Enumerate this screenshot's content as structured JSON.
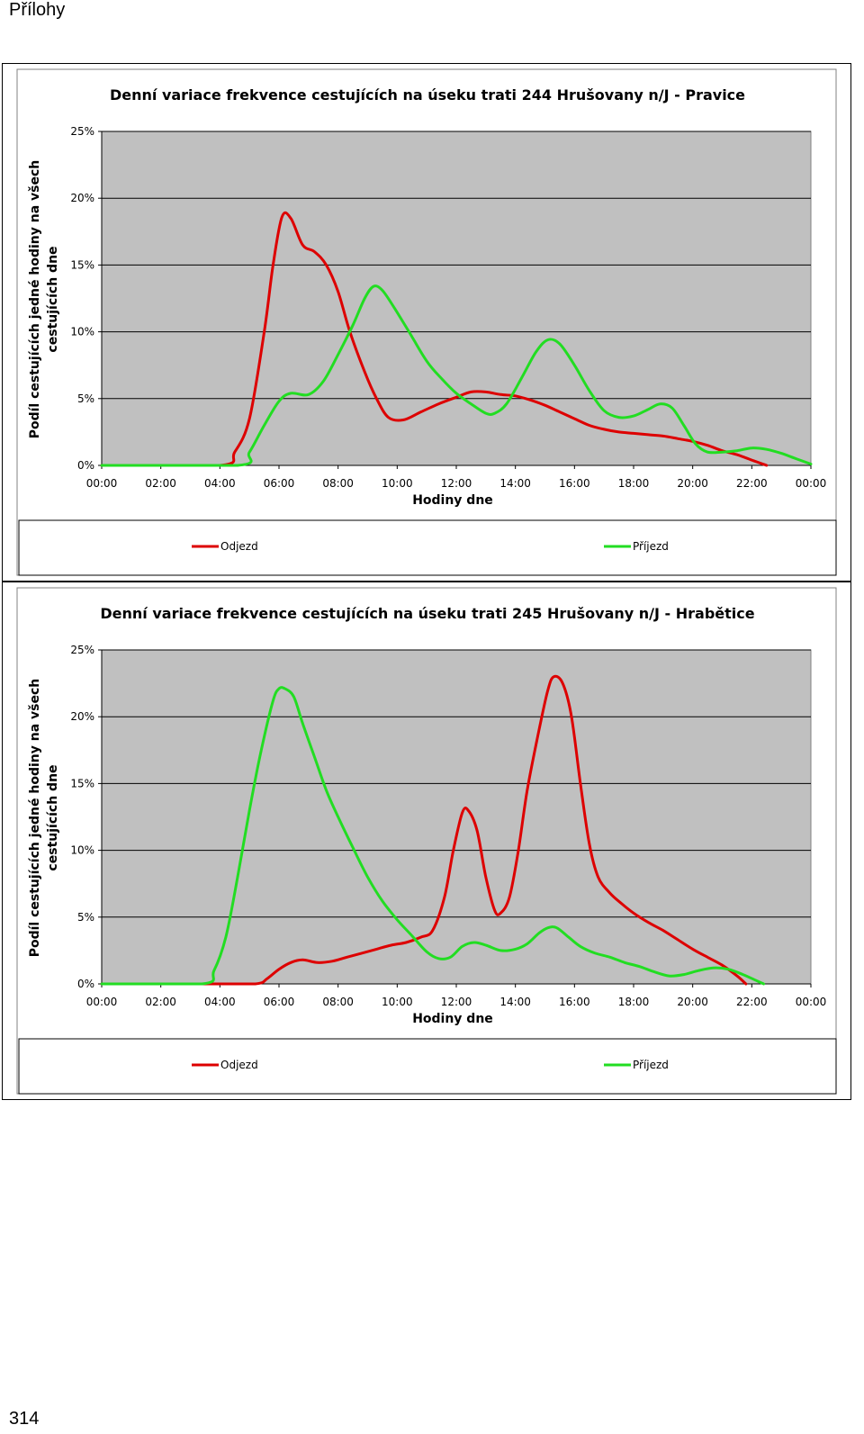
{
  "page": {
    "header": "Přílohy",
    "footer": "314"
  },
  "colors": {
    "odjezd": "#dd0000",
    "prijezd": "#22dd22",
    "plot_bg": "#c0c0c0"
  },
  "chart_data": [
    {
      "type": "line",
      "title": "Denní variace frekvence cestujících na úseku trati 244 Hrušovany n/J - Pravice",
      "xlabel": "Hodiny dne",
      "ylabel": [
        "Podíl cestujících jedné hodiny na všech",
        "cestujících dne"
      ],
      "x_ticks": [
        "00:00",
        "02:00",
        "04:00",
        "06:00",
        "08:00",
        "10:00",
        "12:00",
        "14:00",
        "16:00",
        "18:00",
        "20:00",
        "22:00",
        "00:00"
      ],
      "y_ticks": [
        "0%",
        "5%",
        "10%",
        "15%",
        "20%",
        "25%"
      ],
      "xlim": [
        0,
        24
      ],
      "ylim": [
        0,
        25
      ],
      "grid": true,
      "legend_position": "bottom",
      "series": [
        {
          "name": "Odjezd",
          "color": "#dd0000",
          "points": [
            [
              0,
              0
            ],
            [
              4,
              0
            ],
            [
              4.5,
              1
            ],
            [
              5,
              3.5
            ],
            [
              5.5,
              10
            ],
            [
              5.8,
              15
            ],
            [
              6.1,
              18.6
            ],
            [
              6.4,
              18.5
            ],
            [
              6.8,
              16.5
            ],
            [
              7.2,
              16
            ],
            [
              7.6,
              15
            ],
            [
              8,
              13
            ],
            [
              8.4,
              10
            ],
            [
              8.9,
              7
            ],
            [
              9.3,
              5
            ],
            [
              9.7,
              3.6
            ],
            [
              10.2,
              3.4
            ],
            [
              10.8,
              4
            ],
            [
              11.4,
              4.6
            ],
            [
              12,
              5.1
            ],
            [
              12.5,
              5.5
            ],
            [
              13,
              5.5
            ],
            [
              13.5,
              5.3
            ],
            [
              14,
              5.2
            ],
            [
              14.5,
              4.9
            ],
            [
              15,
              4.5
            ],
            [
              15.5,
              4
            ],
            [
              16,
              3.5
            ],
            [
              16.5,
              3
            ],
            [
              17,
              2.7
            ],
            [
              17.5,
              2.5
            ],
            [
              18,
              2.4
            ],
            [
              18.5,
              2.3
            ],
            [
              19,
              2.2
            ],
            [
              19.5,
              2
            ],
            [
              20,
              1.8
            ],
            [
              20.5,
              1.5
            ],
            [
              21,
              1.1
            ],
            [
              21.5,
              0.8
            ],
            [
              22,
              0.4
            ],
            [
              22.5,
              0
            ]
          ]
        },
        {
          "name": "Příjezd",
          "color": "#22dd22",
          "points": [
            [
              0,
              0
            ],
            [
              4.6,
              0
            ],
            [
              5,
              1
            ],
            [
              5.5,
              3
            ],
            [
              6,
              4.8
            ],
            [
              6.4,
              5.4
            ],
            [
              7,
              5.3
            ],
            [
              7.5,
              6.3
            ],
            [
              8,
              8.3
            ],
            [
              8.5,
              10.5
            ],
            [
              8.9,
              12.5
            ],
            [
              9.2,
              13.4
            ],
            [
              9.5,
              13.1
            ],
            [
              9.9,
              11.8
            ],
            [
              10.4,
              10
            ],
            [
              11,
              7.8
            ],
            [
              11.5,
              6.5
            ],
            [
              12,
              5.4
            ],
            [
              12.5,
              4.6
            ],
            [
              13,
              3.9
            ],
            [
              13.3,
              3.9
            ],
            [
              13.7,
              4.6
            ],
            [
              14.2,
              6.5
            ],
            [
              14.7,
              8.5
            ],
            [
              15.1,
              9.4
            ],
            [
              15.5,
              9.1
            ],
            [
              16,
              7.5
            ],
            [
              16.5,
              5.6
            ],
            [
              17,
              4.1
            ],
            [
              17.5,
              3.6
            ],
            [
              18,
              3.7
            ],
            [
              18.5,
              4.2
            ],
            [
              18.9,
              4.6
            ],
            [
              19.3,
              4.3
            ],
            [
              19.7,
              3
            ],
            [
              20.1,
              1.6
            ],
            [
              20.5,
              1
            ],
            [
              21,
              1
            ],
            [
              21.5,
              1.1
            ],
            [
              22,
              1.3
            ],
            [
              22.5,
              1.2
            ],
            [
              23,
              0.9
            ],
            [
              23.5,
              0.5
            ],
            [
              24,
              0.1
            ]
          ]
        }
      ]
    },
    {
      "type": "line",
      "title": "Denní variace frekvence cestujících na úseku trati 245 Hrušovany n/J - Hrabětice",
      "xlabel": "Hodiny dne",
      "ylabel": [
        "Podíl cestujících jedné hodiny na všech",
        "cestujících dne"
      ],
      "x_ticks": [
        "00:00",
        "02:00",
        "04:00",
        "06:00",
        "08:00",
        "10:00",
        "12:00",
        "14:00",
        "16:00",
        "18:00",
        "20:00",
        "22:00",
        "00:00"
      ],
      "y_ticks": [
        "0%",
        "5%",
        "10%",
        "15%",
        "20%",
        "25%"
      ],
      "xlim": [
        0,
        24
      ],
      "ylim": [
        0,
        25
      ],
      "grid": true,
      "legend_position": "bottom",
      "series": [
        {
          "name": "Odjezd",
          "color": "#dd0000",
          "points": [
            [
              0,
              0
            ],
            [
              3.5,
              0
            ],
            [
              5.2,
              0
            ],
            [
              5.6,
              0.4
            ],
            [
              6,
              1.1
            ],
            [
              6.4,
              1.6
            ],
            [
              6.8,
              1.8
            ],
            [
              7.3,
              1.6
            ],
            [
              7.8,
              1.7
            ],
            [
              8.3,
              2
            ],
            [
              8.8,
              2.3
            ],
            [
              9.3,
              2.6
            ],
            [
              9.8,
              2.9
            ],
            [
              10.3,
              3.1
            ],
            [
              10.8,
              3.5
            ],
            [
              11.2,
              4
            ],
            [
              11.6,
              6.5
            ],
            [
              11.9,
              10
            ],
            [
              12.2,
              12.8
            ],
            [
              12.4,
              13
            ],
            [
              12.7,
              11.5
            ],
            [
              13,
              8
            ],
            [
              13.3,
              5.5
            ],
            [
              13.5,
              5.3
            ],
            [
              13.8,
              6.5
            ],
            [
              14.1,
              10
            ],
            [
              14.4,
              14.5
            ],
            [
              14.8,
              19
            ],
            [
              15.1,
              22
            ],
            [
              15.3,
              23
            ],
            [
              15.6,
              22.5
            ],
            [
              15.9,
              20
            ],
            [
              16.2,
              15
            ],
            [
              16.5,
              10.5
            ],
            [
              16.8,
              8
            ],
            [
              17.2,
              6.8
            ],
            [
              17.6,
              6
            ],
            [
              18,
              5.3
            ],
            [
              18.5,
              4.6
            ],
            [
              19,
              4
            ],
            [
              19.5,
              3.3
            ],
            [
              20,
              2.6
            ],
            [
              20.5,
              2
            ],
            [
              21,
              1.4
            ],
            [
              21.5,
              0.6
            ],
            [
              21.8,
              0
            ]
          ]
        },
        {
          "name": "Příjezd",
          "color": "#22dd22",
          "points": [
            [
              0,
              0
            ],
            [
              3.4,
              0
            ],
            [
              3.8,
              1
            ],
            [
              4.2,
              3.5
            ],
            [
              4.6,
              8
            ],
            [
              5,
              13
            ],
            [
              5.4,
              17.5
            ],
            [
              5.8,
              21.2
            ],
            [
              6,
              22.1
            ],
            [
              6.2,
              22.1
            ],
            [
              6.5,
              21.5
            ],
            [
              6.8,
              19.5
            ],
            [
              7.2,
              17
            ],
            [
              7.6,
              14.5
            ],
            [
              8,
              12.5
            ],
            [
              8.5,
              10.2
            ],
            [
              9,
              8
            ],
            [
              9.5,
              6.2
            ],
            [
              10,
              4.8
            ],
            [
              10.5,
              3.6
            ],
            [
              11,
              2.4
            ],
            [
              11.4,
              1.9
            ],
            [
              11.8,
              2
            ],
            [
              12.2,
              2.8
            ],
            [
              12.6,
              3.1
            ],
            [
              13,
              2.9
            ],
            [
              13.5,
              2.5
            ],
            [
              14,
              2.6
            ],
            [
              14.4,
              3
            ],
            [
              14.8,
              3.8
            ],
            [
              15.1,
              4.2
            ],
            [
              15.4,
              4.2
            ],
            [
              15.8,
              3.5
            ],
            [
              16.2,
              2.8
            ],
            [
              16.7,
              2.3
            ],
            [
              17.2,
              2
            ],
            [
              17.7,
              1.6
            ],
            [
              18.2,
              1.3
            ],
            [
              18.7,
              0.9
            ],
            [
              19.2,
              0.6
            ],
            [
              19.7,
              0.7
            ],
            [
              20.2,
              1
            ],
            [
              20.7,
              1.2
            ],
            [
              21.2,
              1.1
            ],
            [
              21.7,
              0.7
            ],
            [
              22.2,
              0.2
            ],
            [
              22.4,
              0
            ]
          ]
        }
      ]
    }
  ]
}
